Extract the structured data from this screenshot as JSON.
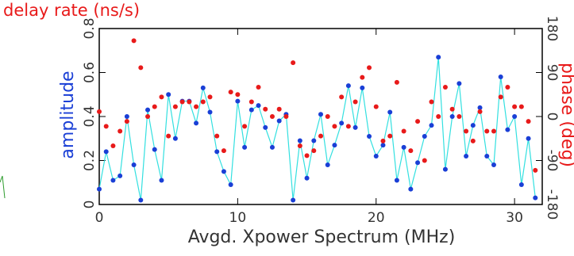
{
  "chart_data": {
    "type": "line",
    "title": "delay rate (ns/s)",
    "x_label": "Avgd. Xpower Spectrum (MHz)",
    "y_label": "amplitude",
    "y2_label": "phase (deg)",
    "x": [
      0,
      0.5,
      1,
      1.5,
      2,
      2.5,
      3,
      3.5,
      4,
      4.5,
      5,
      5.5,
      6,
      6.5,
      7,
      7.5,
      8,
      8.5,
      9,
      9.5,
      10,
      10.5,
      11,
      11.5,
      12,
      12.5,
      13,
      13.5,
      14,
      14.5,
      15,
      15.5,
      16,
      16.5,
      17,
      17.5,
      18,
      18.5,
      19,
      19.5,
      20,
      20.5,
      21,
      21.5,
      22,
      22.5,
      23,
      23.5,
      24,
      24.5,
      25,
      25.5,
      26,
      26.5,
      27,
      27.5,
      28,
      28.5,
      29,
      29.5,
      30,
      30.5,
      31,
      31.5
    ],
    "series": [
      {
        "name": "amplitude",
        "color": "#1a3fd6",
        "line_color": "#33e0e0",
        "values": [
          0.07,
          0.24,
          0.11,
          0.13,
          0.4,
          0.18,
          0.02,
          0.43,
          0.25,
          0.11,
          0.5,
          0.3,
          0.47,
          0.47,
          0.37,
          0.53,
          0.42,
          0.24,
          0.15,
          0.09,
          0.47,
          0.26,
          0.43,
          0.45,
          0.35,
          0.26,
          0.38,
          0.41,
          0.02,
          0.29,
          0.12,
          0.29,
          0.41,
          0.18,
          0.27,
          0.37,
          0.54,
          0.35,
          0.53,
          0.31,
          0.22,
          0.27,
          0.42,
          0.11,
          0.26,
          0.07,
          0.19,
          0.31,
          0.36,
          0.67,
          0.16,
          0.4,
          0.55,
          0.22,
          0.36,
          0.44,
          0.22,
          0.18,
          0.58,
          0.34,
          0.4,
          0.09,
          0.3,
          0.03
        ]
      },
      {
        "name": "phase",
        "color": "#e81a1a",
        "axis": "y2",
        "values": [
          10,
          -20,
          -60,
          -30,
          -10,
          155,
          100,
          0,
          20,
          40,
          -40,
          20,
          30,
          30,
          20,
          30,
          40,
          -40,
          -70,
          50,
          45,
          -20,
          30,
          60,
          15,
          0,
          15,
          0,
          110,
          -60,
          -80,
          -70,
          -40,
          0,
          -20,
          40,
          -20,
          30,
          80,
          100,
          20,
          -50,
          -40,
          70,
          -30,
          -70,
          -10,
          -90,
          30,
          0,
          60,
          15,
          0,
          -30,
          -50,
          10,
          -30,
          -30,
          40,
          60,
          20,
          20,
          -10,
          -110
        ]
      }
    ],
    "xlim": [
      0,
      32
    ],
    "xticks": [
      0,
      10,
      20,
      30
    ],
    "ylim": [
      0,
      0.8
    ],
    "yticks": [
      0,
      0.2,
      0.4,
      0.6,
      0.8
    ],
    "y2lim": [
      -180,
      180
    ],
    "y2ticks": [
      -180,
      -90,
      0,
      90,
      180
    ]
  }
}
